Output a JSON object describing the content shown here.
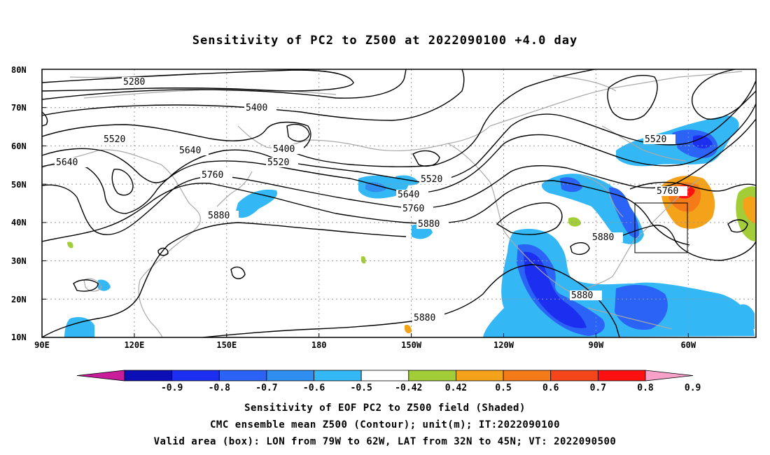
{
  "title": "Sensitivity of PC2 to Z500 at 2022090100 +4.0 day",
  "map": {
    "lon_labels": [
      "90E",
      "120E",
      "150E",
      "180",
      "150W",
      "120W",
      "90W",
      "60W"
    ],
    "lat_labels": [
      "80N",
      "70N",
      "60N",
      "50N",
      "40N",
      "30N",
      "20N",
      "10N"
    ],
    "contour_labels": [
      {
        "text": "5280"
      },
      {
        "text": "5400"
      },
      {
        "text": "5520"
      },
      {
        "text": "5640"
      },
      {
        "text": "5640"
      },
      {
        "text": "5400"
      },
      {
        "text": "5520"
      },
      {
        "text": "5760"
      },
      {
        "text": "5880"
      },
      {
        "text": "5520"
      },
      {
        "text": "5640"
      },
      {
        "text": "5760"
      },
      {
        "text": "5880"
      },
      {
        "text": "5520"
      },
      {
        "text": "5760"
      },
      {
        "text": "5880"
      },
      {
        "text": "5880"
      },
      {
        "text": "5880"
      }
    ],
    "valid_box": {
      "lon_from": "79W",
      "lon_to": "62W",
      "lat_from": "32N",
      "lat_to": "45N"
    }
  },
  "colorbar": {
    "labels": [
      "-0.9",
      "-0.8",
      "-0.7",
      "-0.6",
      "-0.5",
      "-0.42",
      "0.42",
      "0.5",
      "0.6",
      "0.7",
      "0.8",
      "0.9"
    ],
    "colors": [
      "#c81c9a",
      "#0b0fb5",
      "#1c2ff0",
      "#2a63f5",
      "#2f8ef0",
      "#34b7f5",
      "#ffffff",
      "#a2cd36",
      "#f5a21b",
      "#f57a18",
      "#f5451a",
      "#ff1010",
      "#f7a1c8"
    ]
  },
  "captions": [
    "Sensitivity of EOF PC2 to Z500 field (Shaded)",
    "CMC ensemble mean Z500 (Contour); unit(m); IT:2022090100",
    "Valid area (box): LON from 79W to 62W, LAT from 32N to 45N; VT: 2022090500"
  ]
}
